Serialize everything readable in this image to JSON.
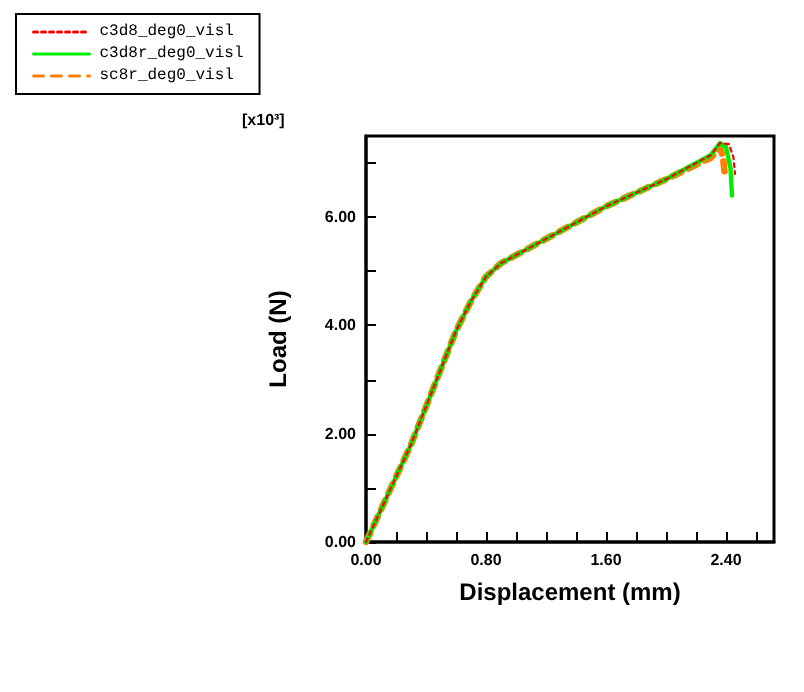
{
  "chart_data": {
    "type": "line",
    "xlabel": "Displacement (mm)",
    "ylabel": "Load (N)",
    "annotations": [
      "[x10³]"
    ],
    "legend": "top left",
    "grid": false,
    "marker": "none",
    "xlim": [
      0,
      2.72
    ],
    "ylim": [
      0,
      7.5
    ],
    "xticks": [
      {
        "value": 0,
        "label": "0.00"
      },
      {
        "value": 0.2,
        "label": null
      },
      {
        "value": 0.4,
        "label": null
      },
      {
        "value": 0.6,
        "label": null
      },
      {
        "value": 0.8,
        "label": "0.80"
      },
      {
        "value": 1.0,
        "label": null
      },
      {
        "value": 1.2,
        "label": null
      },
      {
        "value": 1.4,
        "label": null
      },
      {
        "value": 1.6,
        "label": "1.60"
      },
      {
        "value": 1.8,
        "label": null
      },
      {
        "value": 2.0,
        "label": null
      },
      {
        "value": 2.2,
        "label": null
      },
      {
        "value": 2.4,
        "label": "2.40"
      },
      {
        "value": 2.6,
        "label": null
      }
    ],
    "yticks": [
      {
        "value": 0,
        "label": "0.00"
      },
      {
        "value": 1,
        "label": null
      },
      {
        "value": 2,
        "label": "2.00"
      },
      {
        "value": 3,
        "label": null
      },
      {
        "value": 4,
        "label": "4.00"
      },
      {
        "value": 5,
        "label": null
      },
      {
        "value": 6,
        "label": "6.00"
      },
      {
        "value": 7,
        "label": null
      }
    ],
    "series": [
      {
        "name": "c3d8_deg0_visl",
        "color": "#ff0000",
        "line_style": "dotted",
        "x": [
          0,
          0.3,
          0.6,
          0.7,
          0.8,
          0.9,
          1.2,
          1.6,
          2.0,
          2.3,
          2.36,
          2.42,
          2.45,
          2.46
        ],
        "values": [
          0,
          1.8,
          3.9,
          4.45,
          4.9,
          5.15,
          5.6,
          6.2,
          6.7,
          7.15,
          7.37,
          7.35,
          7.1,
          6.8
        ]
      },
      {
        "name": "c3d8r_deg0_visl",
        "color": "#00ee00",
        "line_style": "solid",
        "x": [
          0,
          0.3,
          0.6,
          0.7,
          0.8,
          0.9,
          1.2,
          1.6,
          2.0,
          2.3,
          2.36,
          2.4,
          2.43,
          2.44
        ],
        "values": [
          0,
          1.8,
          3.9,
          4.45,
          4.9,
          5.15,
          5.6,
          6.2,
          6.7,
          7.15,
          7.37,
          7.3,
          6.9,
          6.4
        ]
      },
      {
        "name": "sc8r_deg0_visl",
        "color": "#ff8000",
        "line_style": "dashed",
        "x": [
          0,
          0.3,
          0.6,
          0.7,
          0.8,
          0.9,
          1.2,
          1.6,
          2.0,
          2.3,
          2.36,
          2.38,
          2.39
        ],
        "values": [
          0,
          1.8,
          3.9,
          4.45,
          4.9,
          5.15,
          5.6,
          6.2,
          6.7,
          7.1,
          7.3,
          7.1,
          6.85
        ]
      }
    ]
  }
}
